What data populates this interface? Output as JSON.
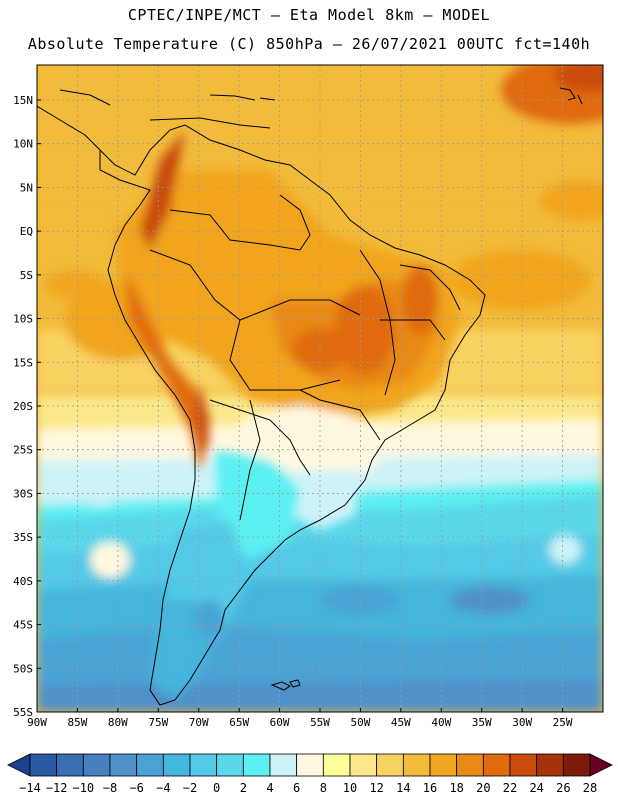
{
  "title": {
    "line1": "CPTEC/INPE/MCT –  Eta Model 8km – MODEL",
    "line2": "Absolute Temperature (C) 850hPa – 26/07/2021 00UTC fct=140h"
  },
  "map": {
    "region": "South America",
    "variable": "Absolute Temperature",
    "units": "C",
    "level": "850hPa",
    "lat_labels": [
      "15N",
      "10N",
      "5N",
      "EQ",
      "5S",
      "10S",
      "15S",
      "20S",
      "25S",
      "30S",
      "35S",
      "40S",
      "45S",
      "50S",
      "55S"
    ],
    "lon_labels": [
      "90W",
      "85W",
      "80W",
      "75W",
      "70W",
      "65W",
      "60W",
      "55W",
      "50W",
      "45W",
      "40W",
      "35W",
      "30W",
      "25W"
    ],
    "lat_range": [
      -55,
      19
    ],
    "lon_range": [
      -90,
      -20
    ]
  },
  "colorbar": {
    "labels": [
      "-14",
      "-12",
      "-10",
      "-8",
      "-6",
      "-4",
      "-2",
      "0",
      "2",
      "4",
      "6",
      "8",
      "10",
      "12",
      "14",
      "16",
      "18",
      "20",
      "22",
      "24",
      "26",
      "28"
    ],
    "colors": [
      "#1d3f8f",
      "#2a5aa3",
      "#3b6fb3",
      "#477fbf",
      "#4f91c9",
      "#4aa2d4",
      "#45b6dd",
      "#52c9e6",
      "#5ad8ea",
      "#5cf0f2",
      "#cdf3f8",
      "#fff8e0",
      "#ffff99",
      "#fce88a",
      "#f8d260",
      "#f3bb3a",
      "#f1a41f",
      "#e98a17",
      "#e06a0d",
      "#c94c0a",
      "#a8320a",
      "#7d1a0a",
      "#660022"
    ]
  },
  "colors": {
    "ocean_warm": "#f3bb3a",
    "ocean_cool": "#52c9e6",
    "land_hot": "#e06a0d",
    "frame": "#000000",
    "grid": "#9a9a9a"
  }
}
